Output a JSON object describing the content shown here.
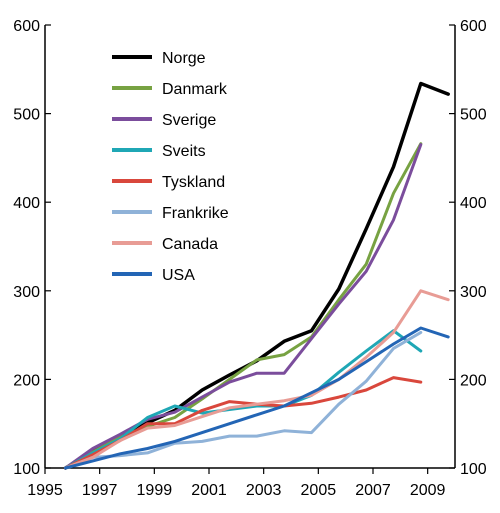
{
  "chart_data": {
    "type": "line",
    "title": "",
    "xlabel": "",
    "ylabel": "",
    "xlim": [
      1995,
      2010
    ],
    "ylim": [
      100,
      600
    ],
    "x_ticks": [
      "1995",
      "1997",
      "1999",
      "2001",
      "2003",
      "2005",
      "2007",
      "2009"
    ],
    "y_ticks": [
      "100",
      "200",
      "300",
      "400",
      "500",
      "600"
    ],
    "y_axis_right": true,
    "grid": false,
    "legend_position": "top-left",
    "series": [
      {
        "name": "Norge",
        "color": "#000000",
        "x": [
          1995.75,
          1996.75,
          1997.75,
          1998.75,
          1999.75,
          2000.75,
          2001.75,
          2002.75,
          2003.75,
          2004.75,
          2005.75,
          2006.75,
          2007.75,
          2008.75,
          2009.75
        ],
        "y": [
          100,
          118,
          137,
          151,
          165,
          188,
          205,
          221,
          243,
          255,
          302,
          370,
          440,
          534,
          522
        ]
      },
      {
        "name": "Danmark",
        "color": "#77a242",
        "x": [
          1995.75,
          1996.75,
          1997.75,
          1998.75,
          1999.75,
          2000.75,
          2001.75,
          2002.75,
          2003.75,
          2004.75,
          2005.75,
          2006.75,
          2007.75,
          2008.75
        ],
        "y": [
          100,
          118,
          135,
          147,
          157,
          178,
          200,
          222,
          228,
          248,
          290,
          330,
          410,
          466
        ]
      },
      {
        "name": "Sverige",
        "color": "#7b4d9c",
        "x": [
          1995.75,
          1996.75,
          1997.75,
          1998.75,
          1999.75,
          2000.75,
          2001.75,
          2002.75,
          2003.75,
          2004.75,
          2005.75,
          2006.75,
          2007.75,
          2008.75
        ],
        "y": [
          100,
          122,
          138,
          155,
          163,
          180,
          197,
          207,
          207,
          246,
          285,
          322,
          380,
          465
        ]
      },
      {
        "name": "Sveits",
        "color": "#1fa7b5",
        "x": [
          1995.75,
          1996.75,
          1997.75,
          1998.75,
          1999.75,
          2000.75,
          2001.75,
          2002.75,
          2003.75,
          2004.75,
          2005.75,
          2006.75,
          2007.75,
          2008.75
        ],
        "y": [
          100,
          117,
          133,
          157,
          170,
          162,
          166,
          170,
          170,
          182,
          208,
          232,
          255,
          232
        ]
      },
      {
        "name": "Tyskland",
        "color": "#d9473c",
        "x": [
          1995.75,
          1996.75,
          1997.75,
          1998.75,
          1999.75,
          2000.75,
          2001.75,
          2002.75,
          2003.75,
          2004.75,
          2005.75,
          2006.75,
          2007.75,
          2008.75
        ],
        "y": [
          100,
          115,
          131,
          150,
          150,
          165,
          175,
          172,
          170,
          173,
          180,
          188,
          202,
          197
        ]
      },
      {
        "name": "Frankrike",
        "color": "#8fb2d8",
        "x": [
          1995.75,
          1996.75,
          1997.75,
          1998.75,
          1999.75,
          2000.75,
          2001.75,
          2002.75,
          2003.75,
          2004.75,
          2005.75,
          2006.75,
          2007.75,
          2008.75
        ],
        "y": [
          100,
          112,
          114,
          117,
          128,
          130,
          136,
          136,
          142,
          140,
          172,
          198,
          235,
          253
        ]
      },
      {
        "name": "Canada",
        "color": "#e89c95",
        "x": [
          1995.75,
          1996.75,
          1997.75,
          1998.75,
          1999.75,
          2000.75,
          2001.75,
          2002.75,
          2003.75,
          2004.75,
          2005.75,
          2006.75,
          2007.75,
          2008.75,
          2009.75
        ],
        "y": [
          100,
          112,
          131,
          145,
          148,
          158,
          168,
          172,
          176,
          182,
          200,
          225,
          253,
          300,
          290
        ]
      },
      {
        "name": "USA",
        "color": "#2365b5",
        "x": [
          1995.75,
          1996.75,
          1997.75,
          1998.75,
          1999.75,
          2000.75,
          2001.75,
          2002.75,
          2003.75,
          2004.75,
          2005.75,
          2006.75,
          2007.75,
          2008.75,
          2009.75
        ],
        "y": [
          100,
          108,
          116,
          122,
          130,
          140,
          150,
          160,
          170,
          185,
          200,
          220,
          240,
          258,
          248
        ]
      }
    ]
  }
}
